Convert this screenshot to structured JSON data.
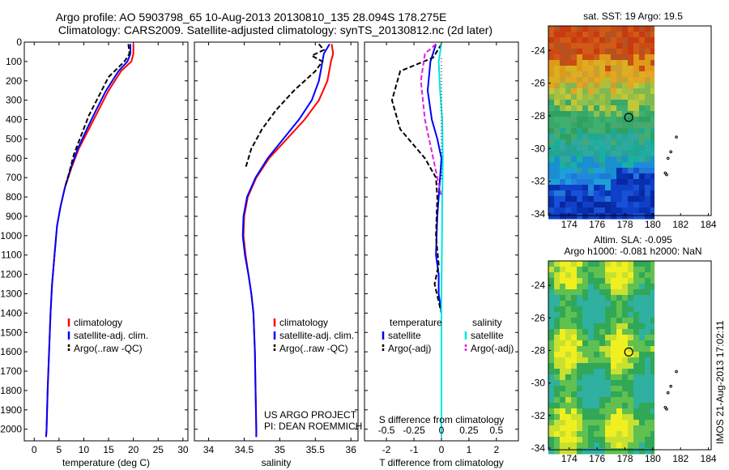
{
  "title_line1": "Argo profile: AO 5903798_65 10-Aug-2013 20130810_135 28.094S 178.275E",
  "title_line2": "Climatology: CARS2009. Satellite-adjusted climatology: synTS_20130812.nc (2d later)",
  "side_text": "IMOS 21-Aug-2013 17:02:11",
  "project_line1": "US ARGO PROJECT",
  "project_line2": "PI: DEAN ROEMMICH",
  "colors": {
    "climatology": "#ff0000",
    "satellite": "#0000ff",
    "argo": "#000000",
    "sal_satellite": "#00e5e5",
    "sal_argo": "#e020e0"
  },
  "chart_data": [
    {
      "type": "line",
      "xlabel": "temperature (deg C)",
      "ylabel": "",
      "xlim": [
        -2,
        31
      ],
      "ylim": [
        2060,
        0
      ],
      "xticks": [
        0,
        5,
        10,
        15,
        20,
        25,
        30
      ],
      "yticks": [
        0,
        100,
        200,
        300,
        400,
        500,
        600,
        700,
        800,
        900,
        1000,
        1100,
        1200,
        1300,
        1400,
        1500,
        1600,
        1700,
        1800,
        1900,
        2000
      ],
      "legend": [
        "climatology",
        "satellite-adj. clim.",
        "Argo(..raw -QC)"
      ],
      "series": [
        {
          "name": "climatology",
          "color": "#ff0000",
          "dash": "",
          "points": [
            [
              20,
              10
            ],
            [
              20,
              60
            ],
            [
              19.6,
              100
            ],
            [
              17.5,
              150
            ],
            [
              15,
              250
            ],
            [
              13,
              350
            ],
            [
              11,
              450
            ],
            [
              9,
              550
            ],
            [
              7.5,
              650
            ],
            [
              6.2,
              750
            ],
            [
              5.3,
              850
            ],
            [
              4.6,
              950
            ],
            [
              4.1,
              1100
            ],
            [
              3.6,
              1250
            ],
            [
              3.3,
              1400
            ],
            [
              3.0,
              1600
            ],
            [
              2.7,
              1800
            ],
            [
              2.5,
              2000
            ],
            [
              2.4,
              2040
            ]
          ]
        },
        {
          "name": "satellite-adj. clim.",
          "color": "#0000ff",
          "dash": "",
          "points": [
            [
              19.4,
              10
            ],
            [
              19.4,
              60
            ],
            [
              18.8,
              100
            ],
            [
              17,
              150
            ],
            [
              14.5,
              250
            ],
            [
              12.5,
              350
            ],
            [
              10.6,
              450
            ],
            [
              8.8,
              550
            ],
            [
              7.4,
              650
            ],
            [
              6.2,
              750
            ],
            [
              5.3,
              850
            ],
            [
              4.6,
              950
            ],
            [
              4.1,
              1100
            ],
            [
              3.6,
              1250
            ],
            [
              3.3,
              1400
            ],
            [
              3.0,
              1600
            ],
            [
              2.7,
              1800
            ],
            [
              2.5,
              2000
            ],
            [
              2.4,
              2040
            ]
          ]
        },
        {
          "name": "Argo(..raw -QC)",
          "color": "#000000",
          "dash": "6,3",
          "points": [
            [
              19,
              10
            ],
            [
              19.2,
              60
            ],
            [
              18.2,
              100
            ],
            [
              15,
              180
            ],
            [
              13,
              280
            ],
            [
              11,
              380
            ],
            [
              9.5,
              480
            ],
            [
              8,
              580
            ],
            [
              7,
              680
            ],
            [
              6.2,
              750
            ]
          ]
        }
      ]
    },
    {
      "type": "line",
      "xlabel": "salinity",
      "ylabel": "",
      "xlim": [
        33.8,
        36.1
      ],
      "ylim": [
        2060,
        0
      ],
      "xticks": [
        34,
        34.5,
        35,
        35.5,
        36
      ],
      "legend": [
        "climatology",
        "satellite-adj. clim.",
        "Argo(..raw -QC)"
      ],
      "series": [
        {
          "name": "climatology",
          "color": "#ff0000",
          "dash": "",
          "points": [
            [
              35.73,
              10
            ],
            [
              35.75,
              60
            ],
            [
              35.72,
              100
            ],
            [
              35.67,
              200
            ],
            [
              35.55,
              300
            ],
            [
              35.35,
              400
            ],
            [
              35.1,
              500
            ],
            [
              34.85,
              600
            ],
            [
              34.67,
              700
            ],
            [
              34.55,
              800
            ],
            [
              34.5,
              900
            ],
            [
              34.49,
              1000
            ],
            [
              34.52,
              1100
            ],
            [
              34.56,
              1200
            ],
            [
              34.6,
              1300
            ],
            [
              34.63,
              1400
            ],
            [
              34.65,
              1600
            ],
            [
              34.66,
              1800
            ],
            [
              34.67,
              2000
            ],
            [
              34.67,
              2040
            ]
          ]
        },
        {
          "name": "satellite-adj. clim.",
          "color": "#0000ff",
          "dash": "",
          "points": [
            [
              35.7,
              10
            ],
            [
              35.62,
              60
            ],
            [
              35.6,
              100
            ],
            [
              35.55,
              200
            ],
            [
              35.45,
              300
            ],
            [
              35.27,
              400
            ],
            [
              35.05,
              500
            ],
            [
              34.83,
              600
            ],
            [
              34.66,
              700
            ],
            [
              34.54,
              800
            ],
            [
              34.49,
              900
            ],
            [
              34.48,
              1000
            ],
            [
              34.51,
              1100
            ],
            [
              34.56,
              1200
            ],
            [
              34.6,
              1300
            ],
            [
              34.63,
              1400
            ],
            [
              34.65,
              1600
            ],
            [
              34.66,
              1800
            ],
            [
              34.67,
              2000
            ],
            [
              34.67,
              2040
            ]
          ]
        },
        {
          "name": "Argo(..raw -QC)",
          "color": "#000000",
          "dash": "6,3",
          "points": [
            [
              35.55,
              10
            ],
            [
              35.62,
              40
            ],
            [
              35.45,
              70
            ],
            [
              35.6,
              100
            ],
            [
              35.5,
              150
            ],
            [
              35.2,
              250
            ],
            [
              34.95,
              350
            ],
            [
              34.75,
              450
            ],
            [
              34.6,
              550
            ],
            [
              34.52,
              650
            ]
          ]
        }
      ]
    },
    {
      "type": "line",
      "xlabel": "T difference from climatology",
      "xlabel2": "S difference from climatology",
      "xlim": [
        -2.8,
        2.8
      ],
      "ylim": [
        2060,
        0
      ],
      "xticks": [
        -2,
        -1,
        0,
        1,
        2
      ],
      "xticks_top": [
        -0.5,
        -0.25,
        0,
        0.25,
        0.5
      ],
      "legend": [
        "temperature",
        "satellite",
        "Argo(-adj)",
        "salinity",
        "satellite",
        "Argo(-adj)"
      ],
      "series": [
        {
          "name": "satellite",
          "group": "temperature",
          "color": "#0000ff",
          "dash": "",
          "points": [
            [
              -0.2,
              10
            ],
            [
              -0.4,
              100
            ],
            [
              -0.5,
              250
            ],
            [
              -0.35,
              400
            ],
            [
              -0.15,
              500
            ],
            [
              0,
              600
            ],
            [
              -0.05,
              700
            ],
            [
              -0.15,
              900
            ],
            [
              -0.2,
              1100
            ],
            [
              -0.1,
              1200
            ],
            [
              -0.1,
              1300
            ],
            [
              0,
              1400
            ],
            [
              0,
              2040
            ]
          ]
        },
        {
          "name": "Argo(-adj)",
          "group": "temperature",
          "color": "#000000",
          "dash": "6,3",
          "points": [
            [
              0,
              10
            ],
            [
              -0.3,
              80
            ],
            [
              -1.5,
              150
            ],
            [
              -1.8,
              300
            ],
            [
              -1.5,
              450
            ],
            [
              -0.6,
              600
            ],
            [
              -0.2,
              700
            ],
            [
              -0.15,
              800
            ],
            [
              -0.2,
              1000
            ],
            [
              -0.1,
              1150
            ],
            [
              -0.25,
              1250
            ],
            [
              0,
              1400
            ]
          ]
        },
        {
          "name": "satellite",
          "group": "salinity",
          "color": "#00e5e5",
          "dash": "",
          "points": [
            [
              0,
              10
            ],
            [
              -0.1,
              100
            ],
            [
              -0.05,
              250
            ],
            [
              0.03,
              400
            ],
            [
              0.05,
              600
            ],
            [
              0.03,
              800
            ],
            [
              0.02,
              1000
            ],
            [
              0,
              1300
            ],
            [
              0,
              2040
            ]
          ]
        },
        {
          "name": "Argo(-adj)",
          "group": "salinity",
          "color": "#e020e0",
          "dash": "6,3",
          "points": [
            [
              -0.2,
              10
            ],
            [
              -0.6,
              60
            ],
            [
              -0.75,
              200
            ],
            [
              -0.6,
              400
            ],
            [
              -0.3,
              600
            ],
            [
              -0.15,
              700
            ],
            [
              0,
              800
            ]
          ]
        }
      ]
    },
    {
      "type": "heatmap",
      "title": "sat. SST: 19 Argo: 19.5",
      "xlim": [
        172.5,
        184.2
      ],
      "ylim": [
        -34.1,
        -22.5
      ],
      "xticks": [
        174,
        176,
        178,
        180,
        182,
        184
      ],
      "yticks": [
        -24,
        -26,
        -28,
        -30,
        -32,
        -34
      ],
      "argo_position": {
        "lon": 178.275,
        "lat": -28.094
      }
    },
    {
      "type": "heatmap",
      "title": "Altim. SLA: -0.095",
      "subtitle": "Argo h1000: -0.081 h2000: NaN",
      "xlim": [
        172.5,
        184.2
      ],
      "ylim": [
        -34.1,
        -22.5
      ],
      "xticks": [
        174,
        176,
        178,
        180,
        182,
        184
      ],
      "yticks": [
        -24,
        -26,
        -28,
        -30,
        -32,
        -34
      ],
      "argo_position": {
        "lon": 178.275,
        "lat": -28.094
      }
    }
  ]
}
